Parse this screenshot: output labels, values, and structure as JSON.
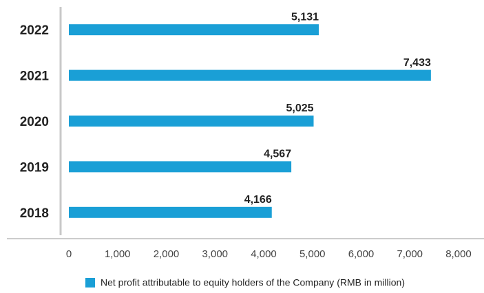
{
  "chart_data": {
    "type": "bar",
    "orientation": "horizontal",
    "categories": [
      "2022",
      "2021",
      "2020",
      "2019",
      "2018"
    ],
    "series": [
      {
        "name": "Net profit attributable to equity holders of the Company (RMB in million)",
        "color": "#1a9fd6",
        "values": [
          5131,
          7433,
          5025,
          4567,
          4166
        ],
        "value_labels": [
          "5,131",
          "7,433",
          "5,025",
          "4,567",
          "4,166"
        ]
      }
    ],
    "xlim": [
      0,
      8000
    ],
    "xticks": [
      0,
      {
        "value": 1000,
        "label": "1,000"
      },
      {
        "value": 2000,
        "label": "2,000"
      },
      {
        "value": 3000,
        "label": "3,000"
      },
      {
        "value": 4000,
        "label": "4,000"
      },
      {
        "value": 5000,
        "label": "5,000"
      },
      {
        "value": 6000,
        "label": "6,000"
      },
      {
        "value": 7000,
        "label": "7,000"
      },
      {
        "value": 8000,
        "label": "8,000"
      }
    ],
    "grid": false,
    "legend": "bottom"
  }
}
